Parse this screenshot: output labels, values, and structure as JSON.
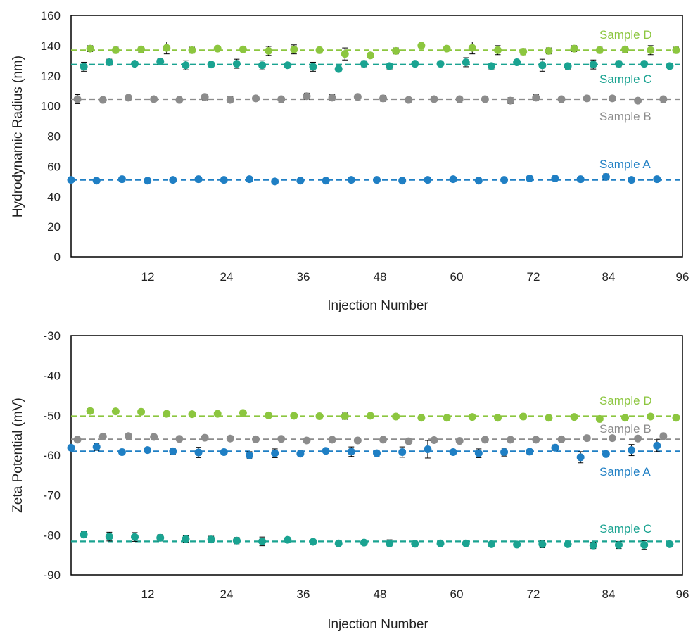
{
  "chart_data": [
    {
      "type": "scatter",
      "xlabel": "Injection Number",
      "ylabel": "Hydrodynamic Radius (nm)",
      "xlim": [
        0,
        96
      ],
      "ylim": [
        0,
        160
      ],
      "xticks": [
        "12",
        "24",
        "36",
        "48",
        "60",
        "72",
        "84",
        "96"
      ],
      "yticks": [
        "0",
        "20",
        "40",
        "60",
        "80",
        "100",
        "120",
        "140",
        "160"
      ],
      "grid": false,
      "series": [
        {
          "name": "Sample D",
          "color": "#8cc63f",
          "mean": 137,
          "x": [
            3,
            7,
            11,
            15,
            19,
            23,
            27,
            31,
            35,
            39,
            43,
            47,
            51,
            55,
            59,
            63,
            67,
            71,
            75,
            79,
            83,
            87,
            91,
            95
          ],
          "values": [
            138,
            137,
            137.5,
            138.5,
            137,
            138,
            137.5,
            136.5,
            137.5,
            137,
            134.5,
            133.5,
            136.5,
            140,
            138,
            138.5,
            137,
            136,
            136.5,
            138,
            137,
            137.5,
            137,
            137
          ],
          "errors": [
            2,
            2,
            2,
            4,
            2,
            1,
            1,
            3,
            3,
            2,
            4,
            1,
            2,
            1,
            1,
            4,
            3,
            2,
            2,
            2,
            2,
            2,
            3,
            2
          ]
        },
        {
          "name": "Sample C",
          "color": "#1aa391",
          "mean": 127.5,
          "x": [
            2,
            6,
            10,
            14,
            18,
            22,
            26,
            30,
            34,
            38,
            42,
            46,
            50,
            54,
            58,
            62,
            66,
            70,
            74,
            78,
            82,
            86,
            90,
            94
          ],
          "values": [
            126,
            129,
            128,
            129.5,
            127,
            127.5,
            128,
            127,
            127,
            126,
            124.5,
            128,
            126.5,
            128,
            128,
            129,
            126.5,
            129,
            127,
            126.5,
            127.5,
            128,
            128,
            126.5
          ],
          "errors": [
            3,
            2,
            1,
            2,
            3,
            1,
            3,
            3,
            1,
            3,
            2,
            2,
            2,
            1,
            1,
            3,
            2,
            1,
            4,
            2,
            3,
            2,
            1,
            1
          ]
        },
        {
          "name": "Sample B",
          "color": "#8c8c8c",
          "mean": 104.5,
          "x": [
            1,
            5,
            9,
            13,
            17,
            21,
            25,
            29,
            33,
            37,
            41,
            45,
            49,
            53,
            57,
            61,
            65,
            69,
            73,
            77,
            81,
            85,
            89,
            93
          ],
          "values": [
            104.5,
            104,
            105.5,
            104.5,
            104,
            106,
            104,
            105,
            104.5,
            106.5,
            105.5,
            106,
            105,
            104,
            104.5,
            104.5,
            104.5,
            103.5,
            105.5,
            104.5,
            105,
            105,
            103.5,
            104.5
          ],
          "errors": [
            3,
            1,
            1,
            1,
            1,
            2,
            2,
            1,
            2,
            2,
            2,
            2,
            2,
            1,
            1,
            2,
            1,
            2,
            2,
            2,
            1,
            1,
            1,
            2
          ]
        },
        {
          "name": "Sample A",
          "color": "#1f7fc4",
          "mean": 51,
          "x": [
            0,
            4,
            8,
            12,
            16,
            20,
            24,
            28,
            32,
            36,
            40,
            44,
            48,
            52,
            56,
            60,
            64,
            68,
            72,
            76,
            80,
            84,
            88,
            92
          ],
          "values": [
            51,
            50.5,
            51.5,
            50.5,
            51,
            51.5,
            51,
            51.5,
            50,
            50.5,
            50.5,
            51,
            51,
            50.5,
            51,
            51.5,
            50.5,
            51,
            52,
            52,
            51.5,
            53,
            51,
            51.5
          ],
          "errors": [
            1,
            1,
            1,
            1,
            1,
            1,
            1,
            1,
            1,
            1,
            1,
            1,
            1,
            1,
            1,
            1,
            1,
            1,
            1,
            1,
            1,
            2,
            1,
            1
          ]
        }
      ]
    },
    {
      "type": "scatter",
      "xlabel": "Injection Number",
      "ylabel": "Zeta Potential (mV)",
      "xlim": [
        0,
        96
      ],
      "ylim": [
        -90,
        -30
      ],
      "xticks": [
        "12",
        "24",
        "36",
        "48",
        "60",
        "72",
        "84",
        "96"
      ],
      "yticks": [
        "-90",
        "-80",
        "-70",
        "-60",
        "-50",
        "-40",
        "-30"
      ],
      "grid": false,
      "series": [
        {
          "name": "Sample D",
          "color": "#8cc63f",
          "mean": -50.2,
          "x": [
            3,
            7,
            11,
            15,
            19,
            23,
            27,
            31,
            35,
            39,
            43,
            47,
            51,
            55,
            59,
            63,
            67,
            71,
            75,
            79,
            83,
            87,
            91,
            95
          ],
          "values": [
            -48.9,
            -49,
            -49.1,
            -49.6,
            -49.7,
            -49.6,
            -49.4,
            -50,
            -50.1,
            -50.2,
            -50.2,
            -50.1,
            -50.3,
            -50.6,
            -50.6,
            -50.4,
            -50.6,
            -50.3,
            -50.6,
            -50.4,
            -50.9,
            -50.6,
            -50.3,
            -50.6
          ],
          "errors": [
            0.6,
            0.6,
            0.6,
            0.3,
            0.3,
            0.3,
            0.4,
            0.3,
            0.3,
            0.3,
            0.8,
            0.3,
            0.3,
            0.3,
            0.3,
            0.3,
            0.3,
            0.3,
            0.3,
            0.3,
            0.4,
            0.3,
            0.3,
            0.5
          ]
        },
        {
          "name": "Sample B",
          "color": "#8c8c8c",
          "mean": -56,
          "x": [
            1,
            5,
            9,
            13,
            17,
            21,
            25,
            29,
            33,
            37,
            41,
            45,
            49,
            53,
            57,
            61,
            65,
            69,
            73,
            77,
            81,
            85,
            89,
            93
          ],
          "values": [
            -56.1,
            -55.3,
            -55.2,
            -55.4,
            -55.9,
            -55.6,
            -55.8,
            -56,
            -55.9,
            -56.3,
            -56.1,
            -56.3,
            -56.1,
            -56.5,
            -56.2,
            -56.4,
            -56.1,
            -56.1,
            -56.1,
            -56,
            -55.7,
            -55.7,
            -55.8,
            -55.2
          ]
        },
        {
          "name": "Sample A",
          "color": "#1f7fc4",
          "mean": -59,
          "x": [
            0,
            4,
            8,
            12,
            16,
            20,
            24,
            28,
            32,
            36,
            40,
            44,
            48,
            52,
            56,
            60,
            64,
            68,
            72,
            76,
            80,
            84,
            88,
            92
          ],
          "values": [
            -58.1,
            -57.9,
            -59.2,
            -58.7,
            -59,
            -59.3,
            -59.2,
            -60,
            -59.5,
            -59.6,
            -58.9,
            -59.1,
            -59.5,
            -59.2,
            -58.5,
            -59.2,
            -59.5,
            -59.2,
            -59.1,
            -58.1,
            -60.5,
            -59.7,
            -58.7,
            -57.6
          ],
          "errors": [
            0.6,
            0.9,
            0.6,
            0.6,
            0.8,
            1.3,
            0.5,
            0.9,
            1.1,
            0.8,
            0.5,
            1.2,
            0.7,
            1.3,
            2.2,
            0.5,
            1.1,
            1.0,
            0.6,
            0.7,
            1.4,
            0.5,
            1.4,
            1.5
          ]
        },
        {
          "name": "Sample C",
          "color": "#1aa391",
          "mean": -81.6,
          "x": [
            2,
            6,
            10,
            14,
            18,
            22,
            26,
            30,
            34,
            38,
            42,
            46,
            50,
            54,
            58,
            62,
            66,
            70,
            74,
            78,
            82,
            86,
            90,
            94
          ],
          "values": [
            -79.9,
            -80.4,
            -80.5,
            -80.7,
            -81,
            -81.1,
            -81.4,
            -81.6,
            -81.2,
            -81.7,
            -82.1,
            -81.9,
            -82.1,
            -82.2,
            -82.1,
            -82.1,
            -82.3,
            -82.4,
            -82.3,
            -82.3,
            -82.6,
            -82.5,
            -82.5,
            -82.3
          ],
          "errors": [
            0.8,
            1.1,
            1.1,
            0.8,
            0.8,
            0.8,
            0.8,
            1.1,
            0.4,
            0.4,
            0.4,
            0.4,
            0.9,
            0.6,
            0.4,
            0.4,
            0.4,
            0.4,
            0.9,
            0.4,
            0.8,
            0.9,
            1.1,
            0.4
          ]
        }
      ]
    }
  ]
}
